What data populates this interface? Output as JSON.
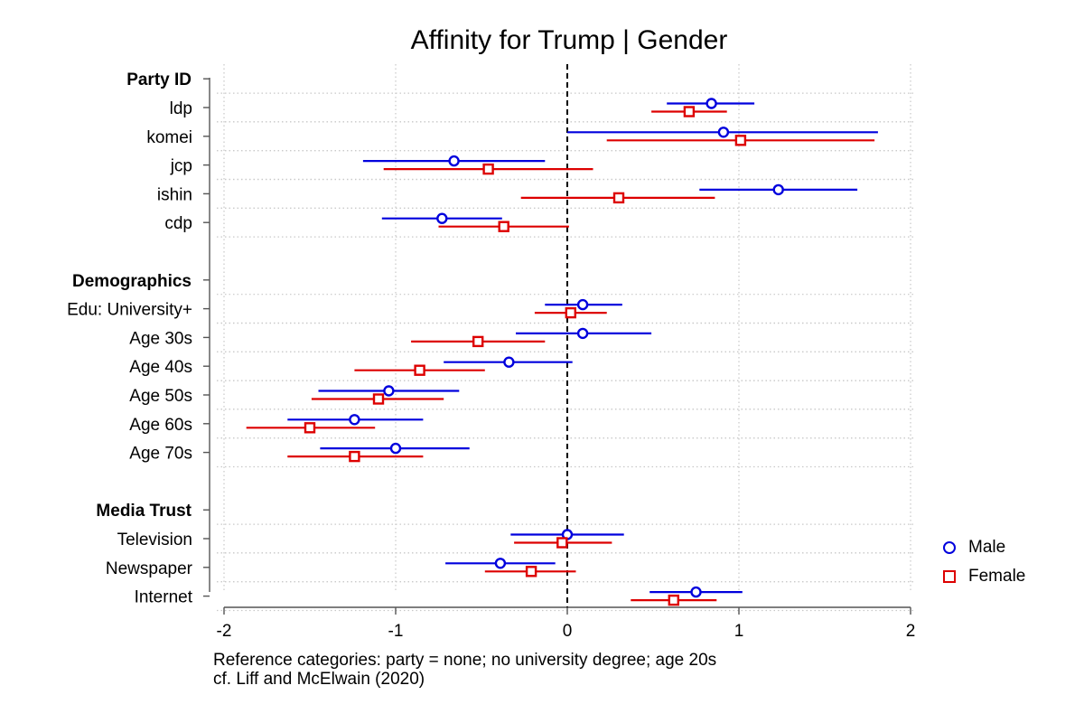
{
  "chart_data": {
    "type": "coefficient_plot",
    "title": "Affinity for Trump | Gender",
    "xlim": [
      -2,
      2
    ],
    "xticks": [
      -2,
      -1,
      0,
      1,
      2
    ],
    "reference_line": 0,
    "grid": true,
    "legend_position": "right",
    "groups": [
      {
        "name": "Party ID",
        "items": [
          "ldp",
          "komei",
          "jcp",
          "ishin",
          "cdp"
        ]
      },
      {
        "name": "Demographics",
        "items": [
          "Edu: University+",
          "Age 30s",
          "Age 40s",
          "Age 50s",
          "Age 60s",
          "Age 70s"
        ]
      },
      {
        "name": "Media Trust",
        "items": [
          "Television",
          "Newspaper",
          "Internet"
        ]
      }
    ],
    "series": [
      {
        "name": "Male",
        "color": "#0000dd",
        "marker": "circle",
        "points": [
          {
            "label": "ldp",
            "estimate": 0.84,
            "low": 0.58,
            "high": 1.09
          },
          {
            "label": "komei",
            "estimate": 0.91,
            "low": 0.0,
            "high": 1.81
          },
          {
            "label": "jcp",
            "estimate": -0.66,
            "low": -1.19,
            "high": -0.13
          },
          {
            "label": "ishin",
            "estimate": 1.23,
            "low": 0.77,
            "high": 1.69
          },
          {
            "label": "cdp",
            "estimate": -0.73,
            "low": -1.08,
            "high": -0.38
          },
          {
            "label": "Edu: University+",
            "estimate": 0.09,
            "low": -0.13,
            "high": 0.32
          },
          {
            "label": "Age 30s",
            "estimate": 0.09,
            "low": -0.3,
            "high": 0.49
          },
          {
            "label": "Age 40s",
            "estimate": -0.34,
            "low": -0.72,
            "high": 0.03
          },
          {
            "label": "Age 50s",
            "estimate": -1.04,
            "low": -1.45,
            "high": -0.63
          },
          {
            "label": "Age 60s",
            "estimate": -1.24,
            "low": -1.63,
            "high": -0.84
          },
          {
            "label": "Age 70s",
            "estimate": -1.0,
            "low": -1.44,
            "high": -0.57
          },
          {
            "label": "Television",
            "estimate": 0.0,
            "low": -0.33,
            "high": 0.33
          },
          {
            "label": "Newspaper",
            "estimate": -0.39,
            "low": -0.71,
            "high": -0.07
          },
          {
            "label": "Internet",
            "estimate": 0.75,
            "low": 0.48,
            "high": 1.02
          }
        ]
      },
      {
        "name": "Female",
        "color": "#dd0000",
        "marker": "square",
        "points": [
          {
            "label": "ldp",
            "estimate": 0.71,
            "low": 0.49,
            "high": 0.93
          },
          {
            "label": "komei",
            "estimate": 1.01,
            "low": 0.23,
            "high": 1.79
          },
          {
            "label": "jcp",
            "estimate": -0.46,
            "low": -1.07,
            "high": 0.15
          },
          {
            "label": "ishin",
            "estimate": 0.3,
            "low": -0.27,
            "high": 0.86
          },
          {
            "label": "cdp",
            "estimate": -0.37,
            "low": -0.75,
            "high": 0.01
          },
          {
            "label": "Edu: University+",
            "estimate": 0.02,
            "low": -0.19,
            "high": 0.23
          },
          {
            "label": "Age 30s",
            "estimate": -0.52,
            "low": -0.91,
            "high": -0.13
          },
          {
            "label": "Age 40s",
            "estimate": -0.86,
            "low": -1.24,
            "high": -0.48
          },
          {
            "label": "Age 50s",
            "estimate": -1.1,
            "low": -1.49,
            "high": -0.72
          },
          {
            "label": "Age 60s",
            "estimate": -1.5,
            "low": -1.87,
            "high": -1.12
          },
          {
            "label": "Age 70s",
            "estimate": -1.24,
            "low": -1.63,
            "high": -0.84
          },
          {
            "label": "Television",
            "estimate": -0.03,
            "low": -0.31,
            "high": 0.26
          },
          {
            "label": "Newspaper",
            "estimate": -0.21,
            "low": -0.48,
            "high": 0.05
          },
          {
            "label": "Internet",
            "estimate": 0.62,
            "low": 0.37,
            "high": 0.87
          }
        ]
      }
    ],
    "notes": [
      "Reference categories: party = none; no university degree; age 20s",
      "cf. Liff and McElwain (2020)"
    ]
  }
}
